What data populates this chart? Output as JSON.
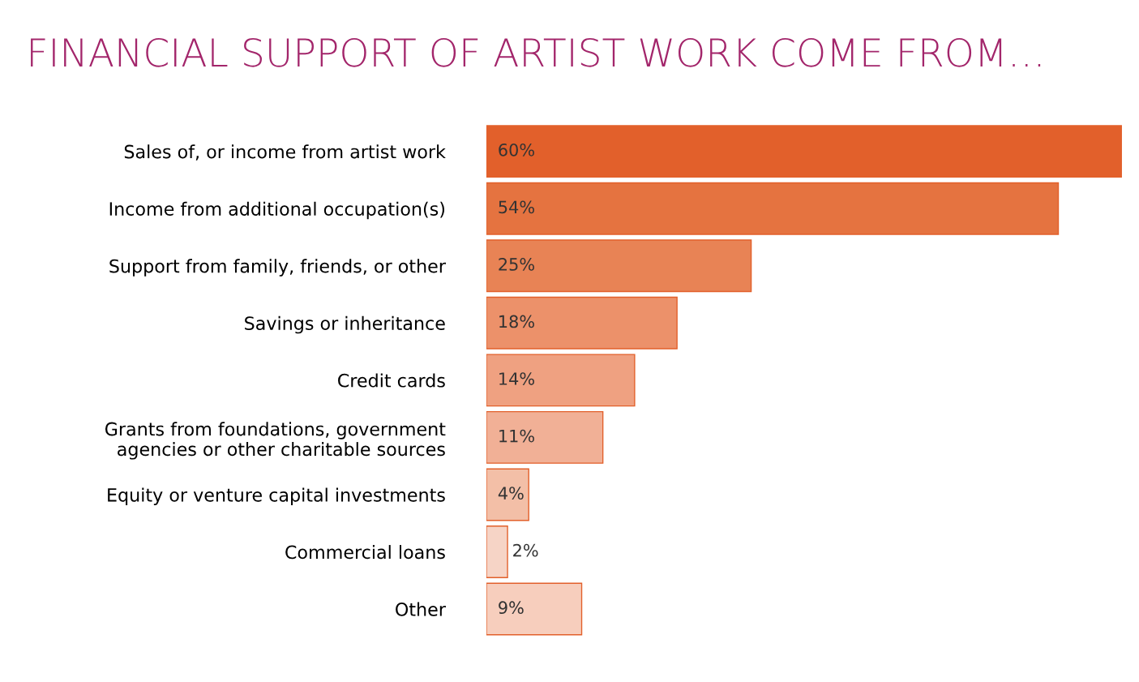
{
  "chart_data": {
    "type": "bar",
    "orientation": "horizontal",
    "title": "FINANCIAL SUPPORT OF ARTIST WORK COME FROM…",
    "categories": [
      "Sales of, or income from artist work",
      "Income from additional occupation(s)",
      "Support from family, friends, or other",
      "Savings or inheritance",
      "Credit cards",
      "Grants from foundations, government\nagencies or other charitable sources",
      "Equity or venture capital investments",
      "Commercial loans",
      "Other"
    ],
    "values": [
      60,
      54,
      25,
      18,
      14,
      11,
      4,
      2,
      9
    ],
    "value_labels": [
      "60%",
      "54%",
      "25%",
      "18%",
      "14%",
      "11%",
      "4%",
      "2%",
      "9%"
    ],
    "colors": [
      "#e2602b",
      "#e57340",
      "#e88355",
      "#ec916a",
      "#efa181",
      "#f1b096",
      "#f3bfa7",
      "#f6d4c6",
      "#f7cebd"
    ],
    "grid": false,
    "legend": false
  }
}
